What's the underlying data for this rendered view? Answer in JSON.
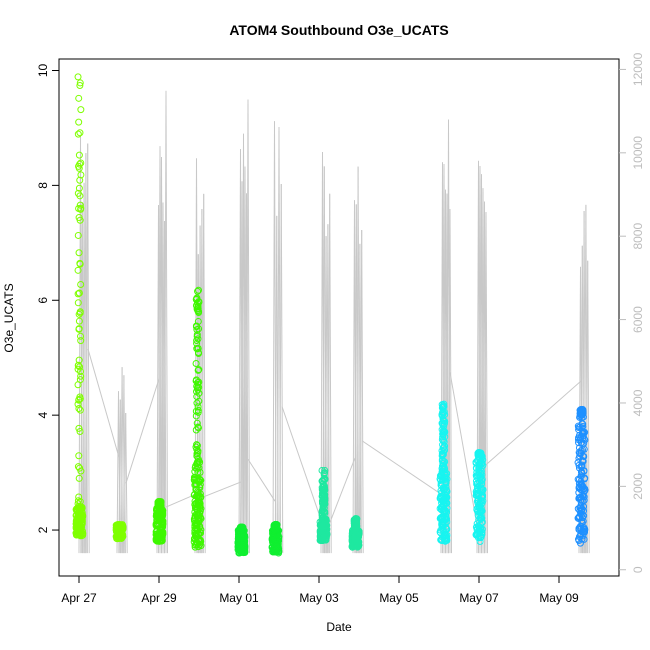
{
  "chart_data": {
    "type": "scatter",
    "title": "ATOM4 Southbound O3e_UCATS",
    "xlabel": "Date",
    "ylabel": "O3e_UCATS",
    "x_ticks": [
      "Apr 27",
      "Apr 29",
      "May 01",
      "May 03",
      "May 05",
      "May 07",
      "May 09"
    ],
    "y_ticks": [
      "2",
      "4",
      "6",
      "8",
      "10"
    ],
    "y2_ticks": [
      "0",
      "2000",
      "4000",
      "6000",
      "8000",
      "10000",
      "12000"
    ],
    "x_range_days": [
      -0.5,
      13.5
    ],
    "ylim": [
      1.2,
      10.2
    ],
    "y2lim": [
      -150,
      12250
    ],
    "colors": {
      "axis": "#000000",
      "secondary_axis": "#bdbdbd",
      "altitude_line": "#c8c8c8"
    },
    "series": [
      {
        "color": "#7fff00",
        "clusters": [
          {
            "day": 0.0,
            "ymin": 1.9,
            "ymax": 9.9,
            "dense_max": 2.4
          },
          {
            "day": 1.0,
            "ymin": 1.85,
            "ymax": 2.1,
            "dense_max": 2.1
          }
        ]
      },
      {
        "color": "#3ff700",
        "clusters": [
          {
            "day": 2.0,
            "ymin": 1.8,
            "ymax": 2.5,
            "dense_max": 2.4
          },
          {
            "day": 2.95,
            "ymin": 1.7,
            "ymax": 6.2,
            "dense_max": 3.2
          }
        ]
      },
      {
        "color": "#10ef30",
        "clusters": [
          {
            "day": 4.05,
            "ymin": 1.6,
            "ymax": 2.05,
            "dense_max": 2.0
          },
          {
            "day": 4.9,
            "ymin": 1.6,
            "ymax": 2.1,
            "dense_max": 2.0
          }
        ]
      },
      {
        "color": "#1fe8a0",
        "clusters": [
          {
            "day": 6.1,
            "ymin": 1.8,
            "ymax": 3.05,
            "dense_max": 2.2
          },
          {
            "day": 6.9,
            "ymin": 1.7,
            "ymax": 2.2,
            "dense_max": 2.0
          }
        ]
      },
      {
        "color": "#18f4f0",
        "clusters": [
          {
            "day": 9.1,
            "ymin": 1.8,
            "ymax": 4.2,
            "dense_max": 3.0
          },
          {
            "day": 10.0,
            "ymin": 1.8,
            "ymax": 3.35,
            "dense_max": 3.3
          }
        ]
      },
      {
        "color": "#1e90ff",
        "clusters": [
          {
            "day": 12.55,
            "ymin": 1.75,
            "ymax": 4.1,
            "dense_max": 4.0
          }
        ]
      }
    ],
    "altitude_profile": [
      {
        "day": 0.05,
        "altitude_peak": 12000
      },
      {
        "day": 1.0,
        "altitude_peak": 5200
      },
      {
        "day": 2.0,
        "altitude_peak": 11700
      },
      {
        "day": 2.95,
        "altitude_peak": 10000
      },
      {
        "day": 4.05,
        "altitude_peak": 12100
      },
      {
        "day": 4.9,
        "altitude_peak": 11000
      },
      {
        "day": 6.1,
        "altitude_peak": 10800
      },
      {
        "day": 6.9,
        "altitude_peak": 9800
      },
      {
        "day": 9.1,
        "altitude_peak": 11700
      },
      {
        "day": 10.0,
        "altitude_peak": 9900
      },
      {
        "day": 12.55,
        "altitude_peak": 9500
      }
    ]
  }
}
